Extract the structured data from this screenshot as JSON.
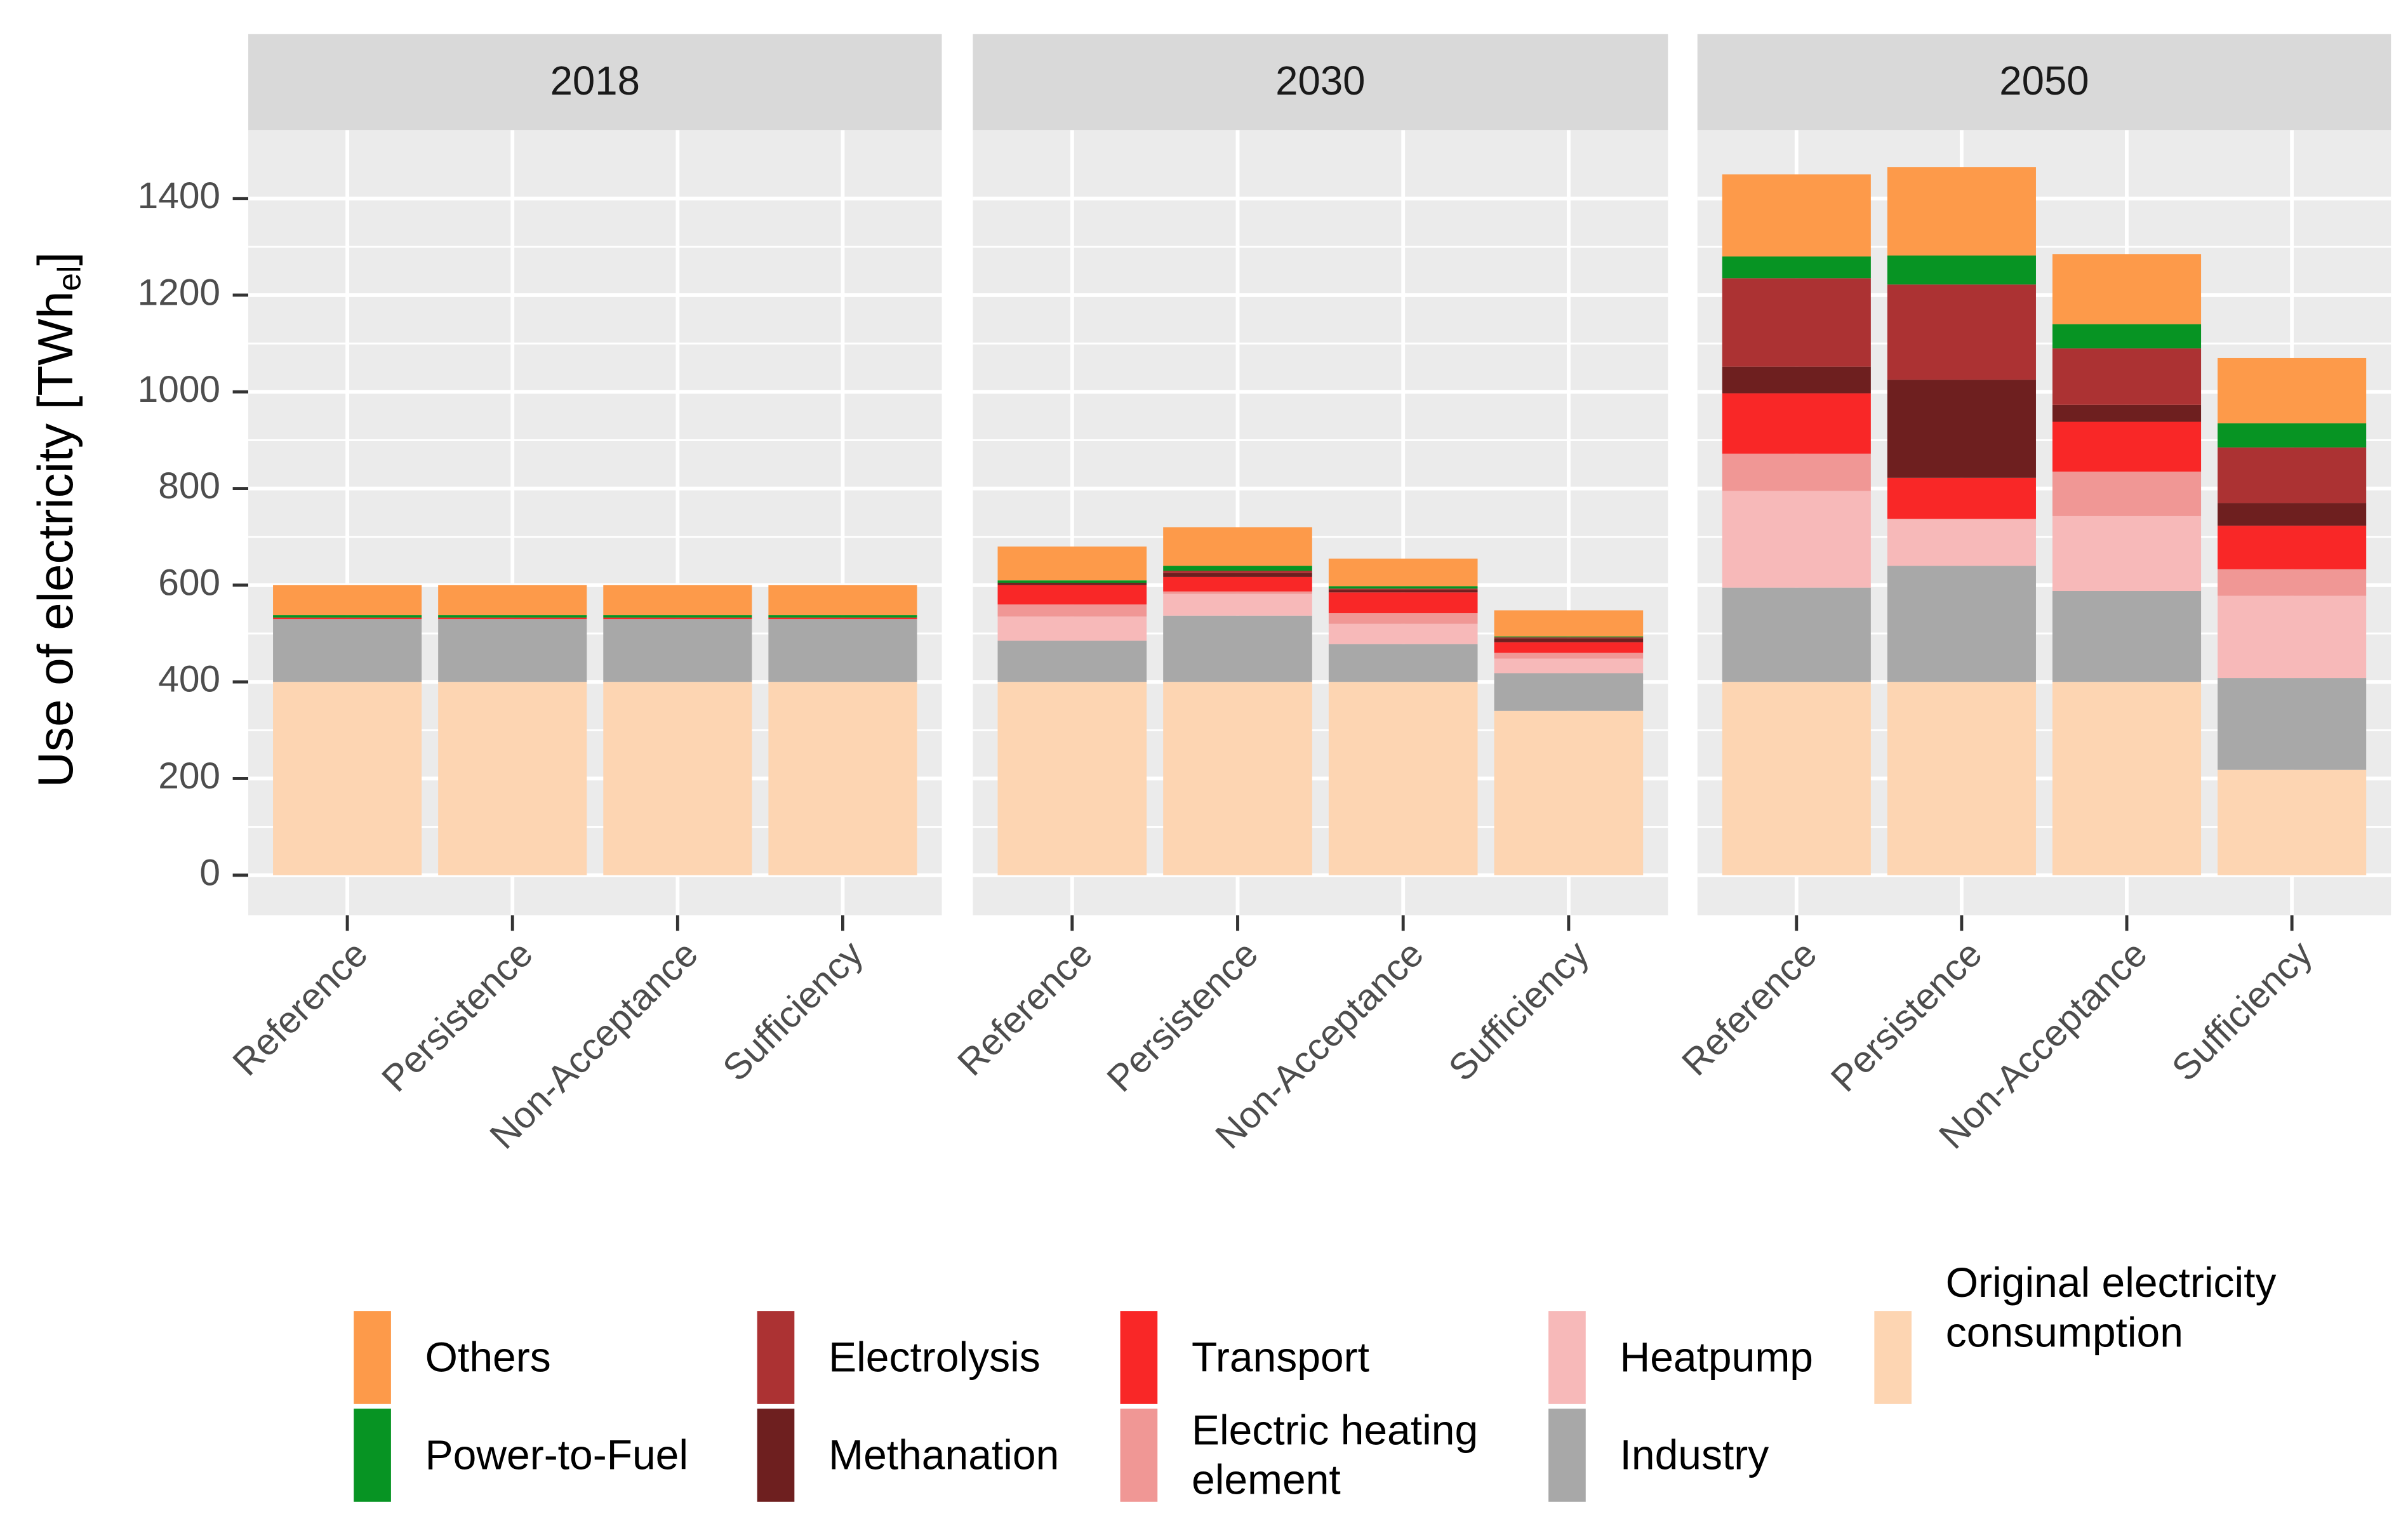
{
  "chart_data": {
    "type": "bar",
    "stacked": true,
    "ylabel": [
      "Use of electricity [TWh",
      "el",
      "]"
    ],
    "facets": [
      "2018",
      "2030",
      "2050"
    ],
    "categories": [
      "Reference",
      "Persistence",
      "Non-Acceptance",
      "Sufficiency"
    ],
    "ylim": [
      -83,
      1541
    ],
    "yticks": [
      0,
      200,
      400,
      600,
      800,
      1000,
      1200,
      1400
    ],
    "grid": true,
    "series": [
      {
        "name": "Original electricity consumption",
        "color": "#fdd5b2",
        "values": [
          [
            400,
            400,
            400,
            400
          ],
          [
            400,
            400,
            400,
            340
          ],
          [
            400,
            400,
            400,
            218
          ]
        ]
      },
      {
        "name": "Industry",
        "color": "#a8a8a8",
        "values": [
          [
            130,
            130,
            130,
            130
          ],
          [
            85,
            137,
            78,
            78
          ],
          [
            195,
            240,
            188,
            190
          ]
        ]
      },
      {
        "name": "Heatpump",
        "color": "#f7b9b9",
        "values": [
          [
            0,
            0,
            0,
            0
          ],
          [
            50,
            45,
            42,
            30
          ],
          [
            200,
            97,
            155,
            170
          ]
        ]
      },
      {
        "name": "Electric heating element",
        "color": "#f09795",
        "values": [
          [
            0,
            0,
            0,
            0
          ],
          [
            25,
            5,
            22,
            12
          ],
          [
            77,
            0,
            92,
            55
          ]
        ]
      },
      {
        "name": "Transport",
        "color": "#f92727",
        "values": [
          [
            3,
            3,
            3,
            3
          ],
          [
            40,
            30,
            43,
            22
          ],
          [
            125,
            85,
            103,
            90
          ]
        ]
      },
      {
        "name": "Methanation",
        "color": "#6e1f1f",
        "values": [
          [
            0,
            0,
            0,
            0
          ],
          [
            5,
            8,
            5,
            8
          ],
          [
            55,
            203,
            35,
            47
          ]
        ]
      },
      {
        "name": "Electrolysis",
        "color": "#ac3233",
        "values": [
          [
            0,
            0,
            0,
            0
          ],
          [
            0,
            5,
            3,
            2
          ],
          [
            183,
            197,
            117,
            115
          ]
        ]
      },
      {
        "name": "Power-to-Fuel",
        "color": "#079423",
        "values": [
          [
            5,
            5,
            5,
            5
          ],
          [
            5,
            10,
            5,
            2
          ],
          [
            45,
            60,
            50,
            50
          ]
        ]
      },
      {
        "name": "Others",
        "color": "#fd9a4a",
        "values": [
          [
            62,
            62,
            62,
            62
          ],
          [
            70,
            80,
            57,
            54
          ],
          [
            170,
            183,
            145,
            135
          ]
        ]
      }
    ]
  }
}
